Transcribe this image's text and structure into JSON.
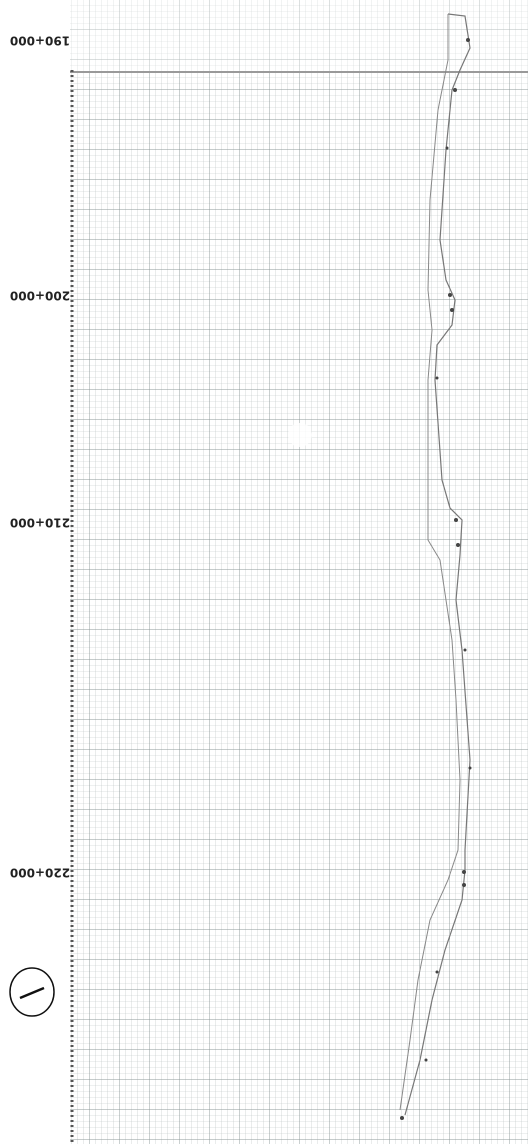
{
  "labels": [
    "190+000",
    "200+000",
    "210+000",
    "220+000"
  ]
}
